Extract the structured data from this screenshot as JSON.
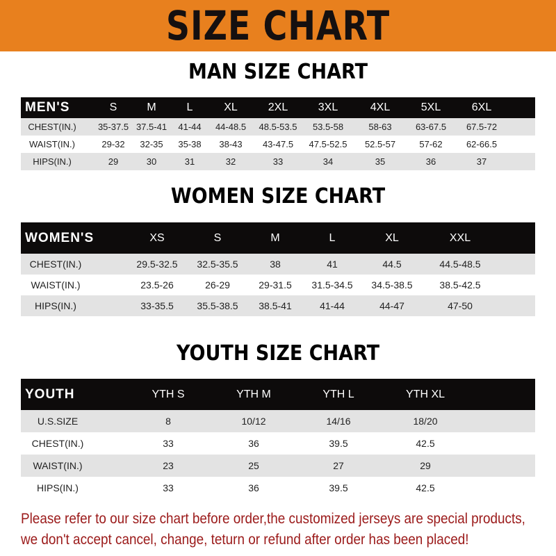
{
  "banner": {
    "title": "SIZE CHART",
    "color": "#e8801e"
  },
  "men": {
    "title": "MAN SIZE CHART",
    "header": [
      "MEN'S",
      "S",
      "M",
      "L",
      "XL",
      "2XL",
      "3XL",
      "4XL",
      "5XL",
      "6XL"
    ],
    "rows": [
      [
        "CHEST(IN.)",
        "35-37.5",
        "37.5-41",
        "41-44",
        "44-48.5",
        "48.5-53.5",
        "53.5-58",
        "58-63",
        "63-67.5",
        "67.5-72"
      ],
      [
        "WAIST(IN.)",
        "29-32",
        "32-35",
        "35-38",
        "38-43",
        "43-47.5",
        "47.5-52.5",
        "52.5-57",
        "57-62",
        "62-66.5"
      ],
      [
        "HIPS(IN.)",
        "29",
        "30",
        "31",
        "32",
        "33",
        "34",
        "35",
        "36",
        "37"
      ]
    ]
  },
  "women": {
    "title": "WOMEN SIZE CHART",
    "header": [
      "WOMEN'S",
      "XS",
      "S",
      "M",
      "L",
      "XL",
      "XXL"
    ],
    "rows": [
      [
        "CHEST(IN.)",
        "29.5-32.5",
        "32.5-35.5",
        "38",
        "41",
        "44.5",
        "44.5-48.5"
      ],
      [
        "WAIST(IN.)",
        "23.5-26",
        "26-29",
        "29-31.5",
        "31.5-34.5",
        "34.5-38.5",
        "38.5-42.5"
      ],
      [
        "HIPS(IN.)",
        "33-35.5",
        "35.5-38.5",
        "38.5-41",
        "41-44",
        "44-47",
        "47-50"
      ]
    ]
  },
  "youth": {
    "title": "YOUTH SIZE CHART",
    "header": [
      "YOUTH",
      "YTH S",
      "YTH M",
      "YTH L",
      "YTH XL"
    ],
    "rows": [
      [
        "U.S.SIZE",
        "8",
        "10/12",
        "14/16",
        "18/20"
      ],
      [
        "CHEST(IN.)",
        "33",
        "36",
        "39.5",
        "42.5"
      ],
      [
        "WAIST(IN.)",
        "23",
        "25",
        "27",
        "29"
      ],
      [
        "HIPS(IN.)",
        "33",
        "36",
        "39.5",
        "42.5"
      ]
    ]
  },
  "notice": {
    "lines": [
      "Please refer to our size chart before order,the customized jerseys are special products,",
      "we don't accept cancel, change, teturn or refund after order has been placed!"
    ],
    "color": "#9b1a1a"
  }
}
